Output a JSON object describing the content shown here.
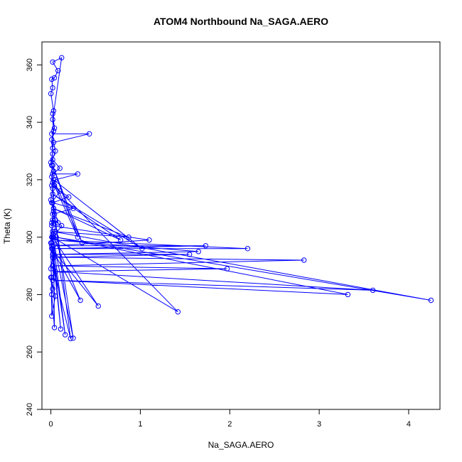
{
  "chart_data": {
    "type": "scatter",
    "title": "ATOM4 Northbound Na_SAGA.AERO",
    "xlabel": "Na_SAGA.AERO",
    "ylabel": "Theta (K)",
    "xlim": [
      -0.1,
      4.35
    ],
    "ylim": [
      240,
      368
    ],
    "x_ticks": [
      0,
      1,
      2,
      3,
      4
    ],
    "y_ticks": [
      240,
      260,
      280,
      300,
      320,
      340,
      360
    ],
    "connect_points": true,
    "color": "#0000ff",
    "points": [
      [
        0.02,
        343
      ],
      [
        0.04,
        338
      ],
      [
        0.01,
        336
      ],
      [
        0.43,
        336
      ],
      [
        0.03,
        333
      ],
      [
        0.05,
        330
      ],
      [
        0.02,
        327
      ],
      [
        0.1,
        324
      ],
      [
        0.02,
        322
      ],
      [
        0.3,
        322
      ],
      [
        0.05,
        320
      ],
      [
        0.01,
        318
      ],
      [
        0.2,
        314
      ],
      [
        0.02,
        312
      ],
      [
        0.25,
        310
      ],
      [
        0.02,
        308
      ],
      [
        0.05,
        306
      ],
      [
        0.01,
        304
      ],
      [
        1.1,
        299
      ],
      [
        0.03,
        297
      ],
      [
        1.73,
        297
      ],
      [
        0.02,
        296
      ],
      [
        2.2,
        296
      ],
      [
        0.05,
        299
      ],
      [
        1.65,
        295
      ],
      [
        0.02,
        294
      ],
      [
        1.55,
        294
      ],
      [
        0.04,
        293
      ],
      [
        2.83,
        292
      ],
      [
        0.02,
        290
      ],
      [
        1.97,
        289
      ],
      [
        0.05,
        288
      ],
      [
        3.6,
        281.5
      ],
      [
        0.02,
        285
      ],
      [
        3.32,
        280
      ],
      [
        0.06,
        300
      ],
      [
        4.25,
        278
      ],
      [
        0.02,
        302
      ],
      [
        0.87,
        300
      ],
      [
        0.03,
        310
      ],
      [
        0.78,
        299
      ],
      [
        0.02,
        315
      ],
      [
        1.02,
        296
      ],
      [
        0.03,
        320
      ],
      [
        0.35,
        298
      ],
      [
        0.02,
        325
      ],
      [
        0.3,
        300
      ],
      [
        0.04,
        318
      ],
      [
        1.42,
        274
      ],
      [
        0.02,
        300
      ],
      [
        0.53,
        276
      ],
      [
        0.01,
        296
      ],
      [
        0.33,
        278
      ],
      [
        0.03,
        300
      ],
      [
        0.12,
        304
      ],
      [
        0.02,
        306
      ],
      [
        0.08,
        305
      ],
      [
        0.01,
        312
      ],
      [
        0.1,
        316
      ],
      [
        0.02,
        319
      ],
      [
        0.05,
        302
      ],
      [
        0.01,
        300
      ],
      [
        0.03,
        286
      ],
      [
        0.02,
        290
      ],
      [
        0.22,
        264.7
      ],
      [
        0.04,
        308
      ],
      [
        0.25,
        264.8
      ],
      [
        0.02,
        300
      ],
      [
        0.16,
        266
      ],
      [
        0.01,
        298
      ],
      [
        0.11,
        268
      ],
      [
        0.03,
        295
      ],
      [
        0.04,
        268.5
      ],
      [
        0.01,
        280
      ],
      [
        0.02,
        282
      ],
      [
        0.0,
        286
      ],
      [
        0.05,
        279.5
      ],
      [
        0.01,
        272.5
      ],
      [
        0.0,
        298
      ],
      [
        0.03,
        310
      ],
      [
        0.01,
        325
      ],
      [
        0.02,
        331
      ],
      [
        0.03,
        344
      ],
      [
        0.0,
        350
      ],
      [
        0.02,
        352
      ],
      [
        0.01,
        355
      ],
      [
        0.04,
        355.5
      ],
      [
        0.08,
        358
      ],
      [
        0.02,
        361
      ],
      [
        0.12,
        362.5
      ],
      [
        0.02,
        341
      ],
      [
        0.03,
        337
      ],
      [
        0.01,
        334
      ],
      [
        0.02,
        329
      ],
      [
        0.0,
        326
      ],
      [
        0.03,
        323
      ],
      [
        0.01,
        321
      ],
      [
        0.02,
        317
      ],
      [
        0.0,
        313
      ],
      [
        0.03,
        309
      ],
      [
        0.01,
        305
      ],
      [
        0.02,
        301
      ],
      [
        0.01,
        297
      ],
      [
        0.02,
        293
      ],
      [
        0.0,
        289
      ],
      [
        0.01,
        286
      ]
    ]
  }
}
